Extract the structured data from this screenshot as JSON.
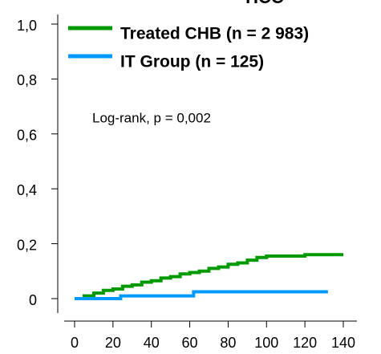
{
  "chart_data": {
    "type": "line",
    "step": true,
    "title": "HCC",
    "title_color": "#ff0000",
    "annotation": "Log-rank, p = 0,002",
    "xlim": [
      0,
      140
    ],
    "xticks": [
      0,
      20,
      40,
      60,
      80,
      100,
      120,
      140
    ],
    "ylim": [
      0,
      1
    ],
    "yticks": [
      0,
      {
        "value": 0.2,
        "label": "0,2"
      },
      {
        "value": 0.4,
        "label": "0,4"
      },
      {
        "value": 0.6,
        "label": "0,6"
      },
      {
        "value": 0.8,
        "label": "0,8"
      },
      {
        "value": 1,
        "label": "1,0"
      }
    ],
    "legend": "upper left",
    "series": [
      {
        "name": "Treated  CHB (n = 2 983)",
        "color": "#009900",
        "x": [
          0,
          5,
          10,
          15,
          20,
          25,
          30,
          35,
          40,
          45,
          50,
          55,
          60,
          65,
          70,
          75,
          80,
          85,
          90,
          95,
          100,
          110,
          120,
          140
        ],
        "values": [
          0,
          0.01,
          0.02,
          0.03,
          0.035,
          0.045,
          0.05,
          0.06,
          0.065,
          0.075,
          0.08,
          0.09,
          0.095,
          0.1,
          0.11,
          0.115,
          0.125,
          0.13,
          0.14,
          0.15,
          0.155,
          0.155,
          0.16,
          0.16
        ]
      },
      {
        "name": "IT Group (n = 125)",
        "color": "#0099ff",
        "x": [
          0,
          24,
          62,
          132
        ],
        "values": [
          0,
          0.01,
          0.025,
          0.025
        ]
      }
    ]
  }
}
